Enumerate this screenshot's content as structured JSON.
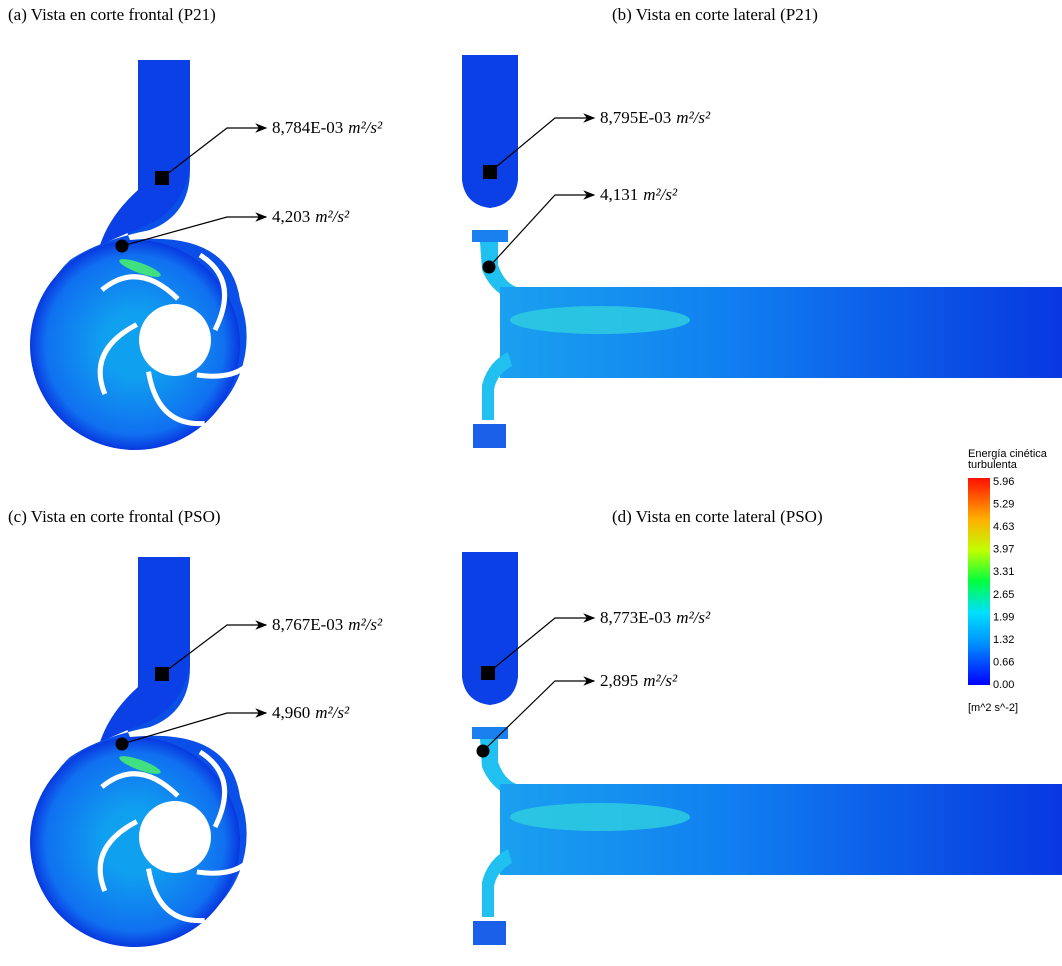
{
  "panels": [
    {
      "caption": "(a) Vista en corte frontal (P21)",
      "annotations": [
        {
          "value": "8,784E-03",
          "unit": "m²/s²"
        },
        {
          "value": "4,203",
          "unit": "m²/s²"
        }
      ]
    },
    {
      "caption": "(b) Vista en corte lateral (P21)",
      "annotations": [
        {
          "value": "8,795E-03",
          "unit": "m²/s²"
        },
        {
          "value": "4,131",
          "unit": "m²/s²"
        }
      ]
    },
    {
      "caption": "(c) Vista en corte frontal (PSO)",
      "annotations": [
        {
          "value": "8,767E-03",
          "unit": "m²/s²"
        },
        {
          "value": "4,960",
          "unit": "m²/s²"
        }
      ]
    },
    {
      "caption": "(d) Vista en corte lateral (PSO)",
      "annotations": [
        {
          "value": "8,773E-03",
          "unit": "m²/s²"
        },
        {
          "value": "2,895",
          "unit": "m²/s²"
        }
      ]
    }
  ],
  "colorbar": {
    "title_lines": [
      "Energía cinética",
      "turbulenta"
    ],
    "ticks": [
      "5.96",
      "5.29",
      "4.63",
      "3.97",
      "3.31",
      "2.65",
      "1.99",
      "1.32",
      "0.66",
      "0.00"
    ],
    "unit": "[m^2 s^-2]"
  }
}
